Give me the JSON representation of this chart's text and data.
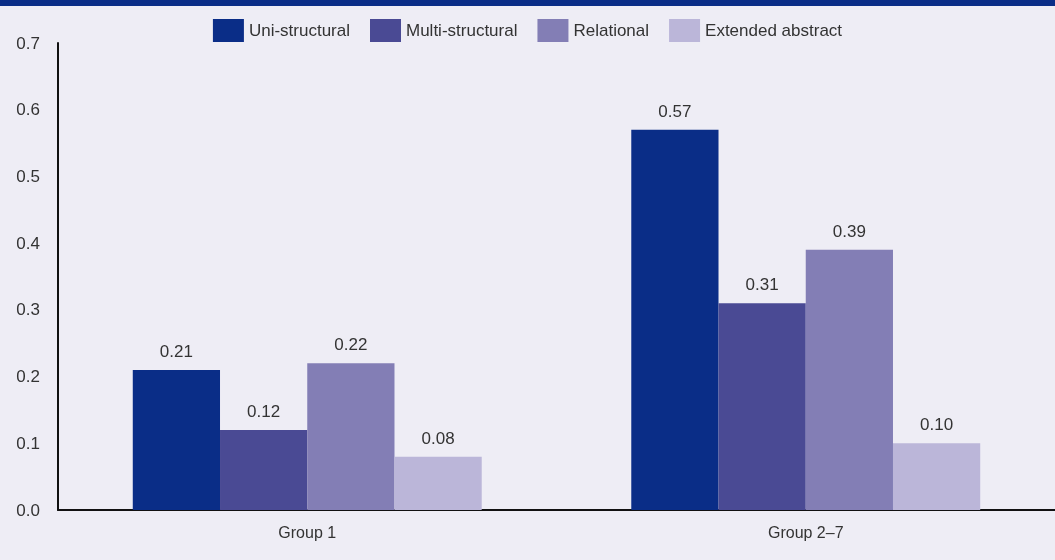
{
  "chart_data": {
    "type": "bar",
    "categories": [
      "Group 1",
      "Group 2–7"
    ],
    "series": [
      {
        "name": "Uni-structural",
        "color": "#0a2d87",
        "values": [
          0.21,
          0.57
        ],
        "value_labels": [
          "0.21",
          "0.57"
        ]
      },
      {
        "name": "Multi-structural",
        "color": "#4a4a94",
        "values": [
          0.12,
          0.31
        ],
        "value_labels": [
          "0.12",
          "0.31"
        ]
      },
      {
        "name": "Relational",
        "color": "#837eb5",
        "values": [
          0.22,
          0.39
        ],
        "value_labels": [
          "0.22",
          "0.39"
        ]
      },
      {
        "name": "Extended abstract",
        "color": "#bbb6d9",
        "values": [
          0.08,
          0.1
        ],
        "value_labels": [
          "0.08",
          "0.10"
        ]
      }
    ],
    "ylim": [
      0,
      0.7
    ],
    "yticks": [
      {
        "value": 0,
        "label": "0.0"
      },
      {
        "value": 0.1,
        "label": "0.1"
      },
      {
        "value": 0.2,
        "label": "0.2"
      },
      {
        "value": 0.3,
        "label": "0.3"
      },
      {
        "value": 0.4,
        "label": "0.4"
      },
      {
        "value": 0.5,
        "label": "0.5"
      },
      {
        "value": 0.6,
        "label": "0.6"
      },
      {
        "value": 0.7,
        "label": "0.7"
      }
    ],
    "grid": false,
    "legend": "top"
  }
}
